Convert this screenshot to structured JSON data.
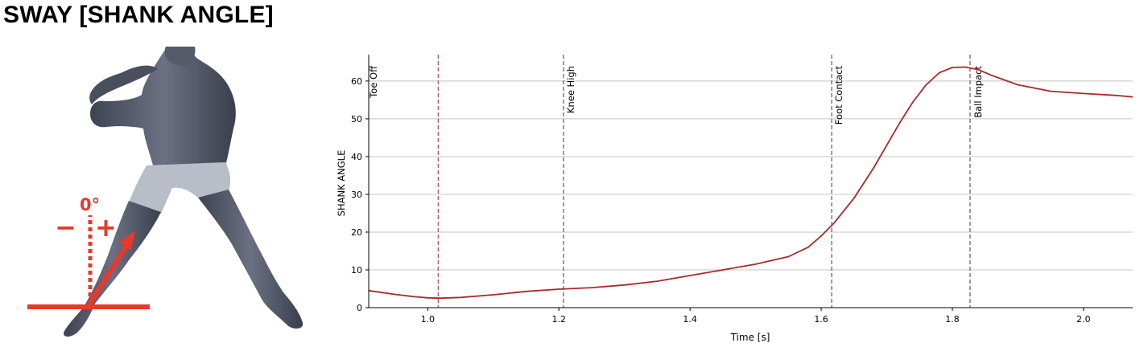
{
  "page": {
    "title": "SWAY [SHANK ANGLE]"
  },
  "figure": {
    "zero_label": "0°",
    "minus_label": "−",
    "plus_label": "+",
    "colors": {
      "marker": "#e8392b",
      "body": "#5f6575",
      "body_dark": "#3e4352",
      "shorts": "#b9bdc8"
    }
  },
  "chart_data": {
    "type": "line",
    "title": "",
    "xlabel": "Time [s]",
    "ylabel": "SHANK ANGLE",
    "xlim": [
      0.91,
      2.075
    ],
    "ylim": [
      0,
      67
    ],
    "xticks": [
      1.0,
      1.2,
      1.4,
      1.6,
      1.8,
      2.0
    ],
    "yticks": [
      0,
      10,
      20,
      30,
      40,
      50,
      60
    ],
    "grid": {
      "y": true,
      "x": false
    },
    "series": [
      {
        "color": "#a82a2a",
        "x": [
          0.91,
          0.95,
          0.98,
          1.0,
          1.02,
          1.05,
          1.1,
          1.15,
          1.2,
          1.25,
          1.3,
          1.35,
          1.4,
          1.45,
          1.5,
          1.55,
          1.58,
          1.6,
          1.62,
          1.65,
          1.68,
          1.7,
          1.72,
          1.74,
          1.76,
          1.78,
          1.8,
          1.82,
          1.84,
          1.86,
          1.9,
          1.95,
          2.0,
          2.05,
          2.075
        ],
        "y": [
          4.5,
          3.5,
          2.9,
          2.6,
          2.5,
          2.7,
          3.4,
          4.3,
          4.9,
          5.3,
          6.0,
          7.0,
          8.5,
          10.0,
          11.5,
          13.5,
          16.0,
          19.0,
          22.5,
          29.0,
          37.0,
          43.0,
          49.0,
          54.5,
          59.0,
          62.2,
          63.6,
          63.7,
          63.0,
          61.5,
          59.0,
          57.3,
          56.7,
          56.2,
          55.8
        ]
      }
    ],
    "events": [
      {
        "label": "Toe Off",
        "x": 1.016,
        "color": "#b35a5a"
      },
      {
        "label": "Knee High",
        "x": 1.207,
        "color": "#666666"
      },
      {
        "label": "Foot Contact",
        "x": 1.616,
        "color": "#666666"
      },
      {
        "label": "Ball Impact",
        "x": 1.827,
        "color": "#666666"
      }
    ]
  }
}
